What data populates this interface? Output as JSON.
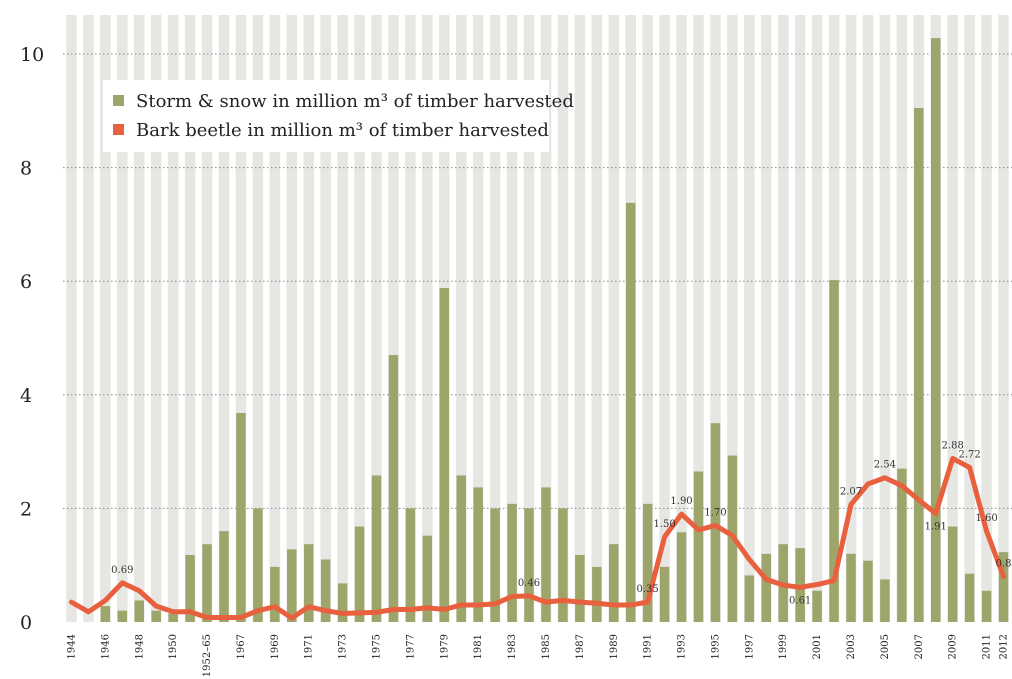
{
  "colors": {
    "storm": "#9DA56B",
    "beetle": "#E8603E",
    "stripe": "#E6E6E3"
  },
  "legend": [
    {
      "key": "storm",
      "label": "Storm & snow in million m³ of timber harvested"
    },
    {
      "key": "beetle",
      "label": "Bark beetle in million m³ of timber harvested"
    }
  ],
  "chart_data": {
    "type": "bar+line",
    "ylim": [
      0,
      10.5
    ],
    "yticks": [
      0,
      2,
      4,
      6,
      8,
      10
    ],
    "grid": "dotted horizontal",
    "legend_position": "top-left",
    "categories": [
      "1944",
      "1945",
      "1946",
      "1947",
      "1948",
      "1949",
      "1950",
      "1951",
      "1952–65",
      "1966",
      "1967",
      "1968",
      "1969",
      "1970",
      "1971",
      "1972",
      "1973",
      "1974",
      "1975",
      "1976",
      "1977",
      "1978",
      "1979",
      "1980",
      "1981",
      "1982",
      "1983",
      "1984",
      "1985",
      "1986",
      "1987",
      "1988",
      "1989",
      "1990",
      "1991",
      "1992",
      "1993",
      "1994",
      "1995",
      "1996",
      "1997",
      "1998",
      "1999",
      "2000",
      "2001",
      "2002",
      "2003",
      "2004",
      "2005",
      "2006",
      "2007",
      "2008",
      "2009",
      "2010",
      "2011",
      "2012"
    ],
    "xtick_labels": [
      "1944",
      "",
      "1946",
      "",
      "1948",
      "",
      "1950",
      "",
      "1952–65",
      "",
      "1967",
      "",
      "1969",
      "",
      "1971",
      "",
      "1973",
      "",
      "1975",
      "",
      "1977",
      "",
      "1979",
      "",
      "1981",
      "",
      "1983",
      "",
      "1985",
      "",
      "1987",
      "",
      "1989",
      "",
      "1991",
      "",
      "1993",
      "",
      "1995",
      "",
      "1997",
      "",
      "1999",
      "",
      "2001",
      "",
      "2003",
      "",
      "2005",
      "",
      "2007",
      "",
      "2009",
      "",
      "2011",
      "2012"
    ],
    "series": [
      {
        "name": "Storm & snow in million m³ of timber harvested",
        "type": "bar",
        "values": [
          0,
          0,
          0.28,
          0.2,
          0.38,
          0.2,
          0.15,
          1.18,
          1.37,
          1.6,
          3.68,
          2.0,
          0.97,
          1.28,
          1.37,
          1.1,
          0.68,
          1.68,
          2.58,
          4.7,
          2.0,
          1.52,
          5.88,
          2.58,
          2.37,
          2.0,
          2.08,
          2.0,
          2.37,
          2.0,
          1.18,
          0.97,
          1.37,
          7.38,
          2.08,
          0.97,
          1.58,
          2.65,
          3.5,
          2.93,
          0.82,
          1.2,
          1.37,
          1.3,
          0.55,
          6.02,
          1.2,
          1.08,
          0.75,
          2.7,
          9.05,
          10.28,
          1.68,
          0.85,
          0.55,
          1.23
        ]
      },
      {
        "name": "Bark beetle in million m³ of timber harvested",
        "type": "line",
        "values": [
          0.35,
          0.18,
          0.38,
          0.69,
          0.55,
          0.28,
          0.18,
          0.18,
          0.08,
          0.08,
          0.08,
          0.2,
          0.27,
          0.07,
          0.27,
          0.2,
          0.15,
          0.16,
          0.17,
          0.22,
          0.22,
          0.25,
          0.22,
          0.3,
          0.3,
          0.32,
          0.45,
          0.46,
          0.35,
          0.38,
          0.35,
          0.33,
          0.3,
          0.3,
          0.35,
          1.5,
          1.9,
          1.62,
          1.7,
          1.52,
          1.1,
          0.75,
          0.65,
          0.61,
          0.66,
          0.73,
          2.07,
          2.43,
          2.54,
          2.4,
          2.15,
          1.91,
          2.88,
          2.72,
          1.6,
          0.8
        ]
      }
    ],
    "data_labels": [
      {
        "index": 3,
        "text": "0.69"
      },
      {
        "index": 27,
        "text": "0.46"
      },
      {
        "index": 34,
        "text": "0.35"
      },
      {
        "index": 35,
        "text": "1.50"
      },
      {
        "index": 36,
        "text": "1.90"
      },
      {
        "index": 38,
        "text": "1.70"
      },
      {
        "index": 43,
        "text": "0.61"
      },
      {
        "index": 46,
        "text": "2.07"
      },
      {
        "index": 48,
        "text": "2.54"
      },
      {
        "index": 51,
        "text": "1.91"
      },
      {
        "index": 52,
        "text": "2.88"
      },
      {
        "index": 53,
        "text": "2.72"
      },
      {
        "index": 54,
        "text": "1.60"
      },
      {
        "index": 55,
        "text": "0.8"
      }
    ]
  }
}
